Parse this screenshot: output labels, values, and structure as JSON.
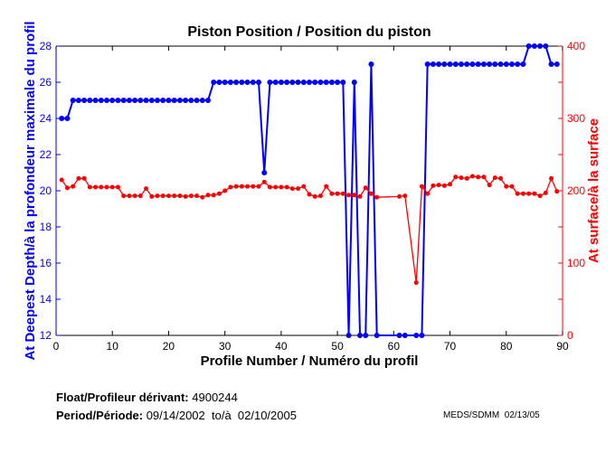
{
  "chart_data": {
    "type": "line",
    "title": "Piston Position / Position du piston",
    "xlabel": "Profile Number / Numéro du profil",
    "ylabel": "At Deepest Depth/à la profondeur maximale du profil",
    "y2label": "At surface/à la surface",
    "xlim": [
      0,
      90
    ],
    "ylim": [
      12,
      28
    ],
    "y2lim": [
      0,
      400
    ],
    "xticks": [
      0,
      10,
      20,
      30,
      40,
      50,
      60,
      70,
      80,
      90
    ],
    "yticks": [
      12,
      14,
      16,
      18,
      20,
      22,
      24,
      26,
      28
    ],
    "y2ticks": [
      0,
      100,
      200,
      300,
      400
    ],
    "grid": false,
    "series": [
      {
        "name": "At Deepest Depth",
        "axis": "left",
        "color": "#0000ff",
        "points": [
          [
            1,
            24
          ],
          [
            2,
            24
          ],
          [
            3,
            25
          ],
          [
            4,
            25
          ],
          [
            5,
            25
          ],
          [
            6,
            25
          ],
          [
            7,
            25
          ],
          [
            8,
            25
          ],
          [
            9,
            25
          ],
          [
            10,
            25
          ],
          [
            11,
            25
          ],
          [
            12,
            25
          ],
          [
            13,
            25
          ],
          [
            14,
            25
          ],
          [
            15,
            25
          ],
          [
            16,
            25
          ],
          [
            17,
            25
          ],
          [
            18,
            25
          ],
          [
            19,
            25
          ],
          [
            20,
            25
          ],
          [
            21,
            25
          ],
          [
            22,
            25
          ],
          [
            23,
            25
          ],
          [
            24,
            25
          ],
          [
            25,
            25
          ],
          [
            26,
            25
          ],
          [
            27,
            25
          ],
          [
            28,
            26
          ],
          [
            29,
            26
          ],
          [
            30,
            26
          ],
          [
            31,
            26
          ],
          [
            32,
            26
          ],
          [
            33,
            26
          ],
          [
            34,
            26
          ],
          [
            35,
            26
          ],
          [
            36,
            26
          ],
          [
            37,
            21
          ],
          [
            38,
            26
          ],
          [
            39,
            26
          ],
          [
            40,
            26
          ],
          [
            41,
            26
          ],
          [
            42,
            26
          ],
          [
            43,
            26
          ],
          [
            44,
            26
          ],
          [
            45,
            26
          ],
          [
            46,
            26
          ],
          [
            47,
            26
          ],
          [
            48,
            26
          ],
          [
            49,
            26
          ],
          [
            50,
            26
          ],
          [
            51,
            26
          ],
          [
            52,
            12
          ],
          [
            53,
            26
          ],
          [
            54,
            12
          ],
          [
            55,
            12
          ],
          [
            56,
            27
          ],
          [
            57,
            12
          ],
          [
            61,
            12
          ],
          [
            62,
            12
          ],
          [
            64,
            12
          ],
          [
            65,
            12
          ],
          [
            66,
            27
          ],
          [
            67,
            27
          ],
          [
            68,
            27
          ],
          [
            69,
            27
          ],
          [
            70,
            27
          ],
          [
            71,
            27
          ],
          [
            72,
            27
          ],
          [
            73,
            27
          ],
          [
            74,
            27
          ],
          [
            75,
            27
          ],
          [
            76,
            27
          ],
          [
            77,
            27
          ],
          [
            78,
            27
          ],
          [
            79,
            27
          ],
          [
            80,
            27
          ],
          [
            81,
            27
          ],
          [
            82,
            27
          ],
          [
            83,
            27
          ],
          [
            84,
            28
          ],
          [
            85,
            28
          ],
          [
            86,
            28
          ],
          [
            87,
            28
          ],
          [
            88,
            27
          ],
          [
            89,
            27
          ]
        ]
      },
      {
        "name": "At surface",
        "axis": "right",
        "color": "#ff0000",
        "points": [
          [
            1,
            215
          ],
          [
            2,
            204
          ],
          [
            3,
            206
          ],
          [
            4,
            217
          ],
          [
            5,
            217
          ],
          [
            6,
            205
          ],
          [
            7,
            205
          ],
          [
            8,
            205
          ],
          [
            9,
            205
          ],
          [
            10,
            205
          ],
          [
            11,
            205
          ],
          [
            12,
            193
          ],
          [
            13,
            193
          ],
          [
            14,
            193
          ],
          [
            15,
            193
          ],
          [
            16,
            203
          ],
          [
            17,
            192
          ],
          [
            18,
            193
          ],
          [
            19,
            193
          ],
          [
            20,
            193
          ],
          [
            21,
            193
          ],
          [
            22,
            193
          ],
          [
            23,
            192
          ],
          [
            24,
            193
          ],
          [
            25,
            193
          ],
          [
            26,
            191
          ],
          [
            27,
            194
          ],
          [
            28,
            194
          ],
          [
            29,
            196
          ],
          [
            30,
            200
          ],
          [
            31,
            205
          ],
          [
            32,
            206
          ],
          [
            33,
            206
          ],
          [
            34,
            206
          ],
          [
            35,
            206
          ],
          [
            36,
            206
          ],
          [
            37,
            212
          ],
          [
            38,
            205
          ],
          [
            39,
            205
          ],
          [
            40,
            205
          ],
          [
            41,
            205
          ],
          [
            42,
            203
          ],
          [
            43,
            203
          ],
          [
            44,
            206
          ],
          [
            45,
            195
          ],
          [
            46,
            192
          ],
          [
            47,
            193
          ],
          [
            48,
            206
          ],
          [
            49,
            196
          ],
          [
            50,
            196
          ],
          [
            51,
            196
          ],
          [
            52,
            194
          ],
          [
            53,
            194
          ],
          [
            54,
            192
          ],
          [
            55,
            204
          ],
          [
            56,
            196
          ],
          [
            57,
            191
          ],
          [
            61,
            192
          ],
          [
            62,
            193
          ],
          [
            64,
            73
          ],
          [
            65,
            206
          ],
          [
            66,
            196
          ],
          [
            67,
            207
          ],
          [
            68,
            208
          ],
          [
            69,
            207
          ],
          [
            70,
            209
          ],
          [
            71,
            219
          ],
          [
            72,
            218
          ],
          [
            73,
            217
          ],
          [
            74,
            220
          ],
          [
            75,
            219
          ],
          [
            76,
            219
          ],
          [
            77,
            208
          ],
          [
            78,
            218
          ],
          [
            79,
            217
          ],
          [
            80,
            206
          ],
          [
            81,
            206
          ],
          [
            82,
            196
          ],
          [
            83,
            196
          ],
          [
            84,
            196
          ],
          [
            85,
            196
          ],
          [
            86,
            193
          ],
          [
            87,
            197
          ],
          [
            88,
            217
          ],
          [
            89,
            199
          ]
        ]
      }
    ]
  },
  "footer": {
    "float_label": "Float/Profileur dérivant:",
    "float_id": "4900244",
    "period_label": "Period/Période:",
    "period_value": "09/14/2002  to/à  02/10/2005",
    "credit": "MEDS/SDMM  02/13/05"
  }
}
